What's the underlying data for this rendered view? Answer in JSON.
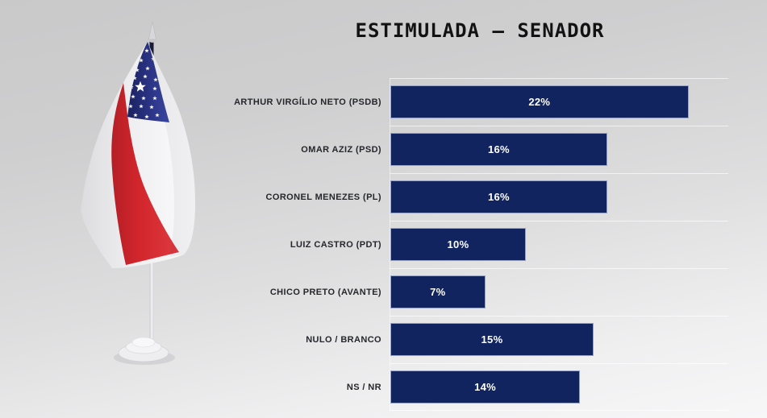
{
  "title": "ESTIMULADA — SENADOR",
  "chart_data": {
    "type": "bar",
    "orientation": "horizontal",
    "title": "ESTIMULADA — SENADOR",
    "categories": [
      "ARTHUR VIRGÍLIO NETO (PSDB)",
      "OMAR AZIZ (PSD)",
      "CORONEL MENEZES (PL)",
      "LUIZ CASTRO (PDT)",
      "CHICO PRETO (AVANTE)",
      "NULO / BRANCO",
      "NS / NR"
    ],
    "values": [
      22,
      16,
      16,
      10,
      7,
      15,
      14
    ],
    "display_values": [
      "22%",
      "16%",
      "16%",
      "10%",
      "7%",
      "15%",
      "14%"
    ],
    "xlim": [
      0,
      25
    ],
    "grid": true,
    "legend": false,
    "bar_color": "#12245f",
    "bar_border_color": "#96a3c8",
    "value_label_color": "#ffffff"
  },
  "decoration": {
    "flag": {
      "name": "amazonas-state-desk-flag",
      "colors": {
        "canton_blue": "#272f7d",
        "stripe_red": "#d2252c",
        "field_white": "#f2f2f3",
        "stars": "#ffffff"
      }
    }
  }
}
